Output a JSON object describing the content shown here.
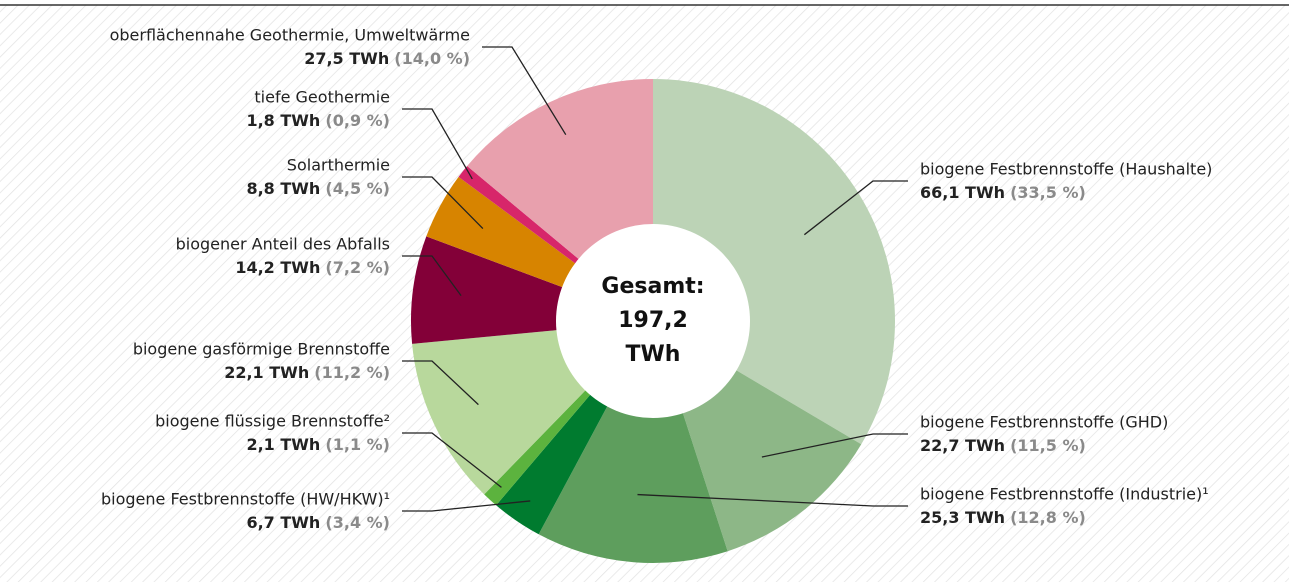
{
  "chart_data": {
    "type": "pie",
    "categories": [
      "biogene Festbrennstoffe (Haushalte)",
      "biogene Festbrennstoffe (GHD)",
      "biogene Festbrennstoffe (Industrie)¹",
      "biogene Festbrennstoffe (HW/HKW)¹",
      "biogene flüssige Brennstoffe²",
      "biogene gasförmige Brennstoffe",
      "biogener Anteil des Abfalls",
      "Solarthermie",
      "tiefe Geothermie",
      "oberflächennahe Geothermie, Umweltwärme"
    ],
    "values": [
      66.1,
      22.7,
      25.3,
      6.7,
      2.1,
      22.1,
      14.2,
      8.8,
      1.8,
      27.5
    ],
    "value_labels": [
      "66,1 TWh",
      "22,7 TWh",
      "25,3 TWh",
      "6,7 TWh",
      "2,1 TWh",
      "22,1 TWh",
      "14,2 TWh",
      "8,8 TWh",
      "1,8 TWh",
      "27,5 TWh"
    ],
    "percents": [
      33.5,
      11.5,
      12.8,
      3.4,
      1.1,
      11.2,
      7.2,
      4.5,
      0.9,
      14.0
    ],
    "percent_labels": [
      "(33,5 %)",
      "(11,5 %)",
      "(12,8 %)",
      "(3,4 %)",
      "(1,1 %)",
      "(11,2 %)",
      "(7,2 %)",
      "(4,5 %)",
      "(0,9 %)",
      "(14,0 %)"
    ],
    "colors": [
      "#bcd3b6",
      "#8db787",
      "#5e9e5d",
      "#007b2f",
      "#5cb33e",
      "#b8d89c",
      "#830038",
      "#d78400",
      "#d7266a",
      "#e8a0ad"
    ],
    "center_label": [
      "Gesamt:",
      "197,2",
      "TWh"
    ]
  }
}
